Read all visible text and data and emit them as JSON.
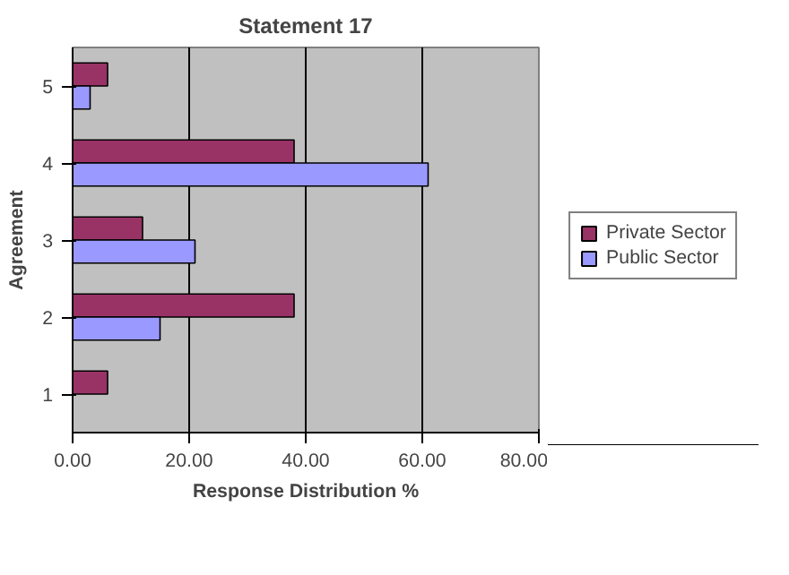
{
  "chart_data": {
    "type": "bar",
    "orientation": "horizontal",
    "title": "Statement 17",
    "xlabel": "Response Distribution %",
    "ylabel": "Agreement",
    "categories": [
      "5",
      "4",
      "3",
      "2",
      "1"
    ],
    "series": [
      {
        "name": "Private Sector",
        "color": "#993366",
        "values": [
          6,
          38,
          12,
          38,
          6
        ]
      },
      {
        "name": "Public Sector",
        "color": "#9999ff",
        "values": [
          3,
          61,
          21,
          15,
          0
        ]
      }
    ],
    "xlim": [
      0,
      80
    ],
    "xticks": [
      {
        "value": 0,
        "label": "0.00"
      },
      {
        "value": 20,
        "label": "20.00"
      },
      {
        "value": 40,
        "label": "40.00"
      },
      {
        "value": 60,
        "label": "60.00"
      },
      {
        "value": 80,
        "label": "80.00"
      }
    ],
    "grid": "x",
    "legend": "right"
  }
}
